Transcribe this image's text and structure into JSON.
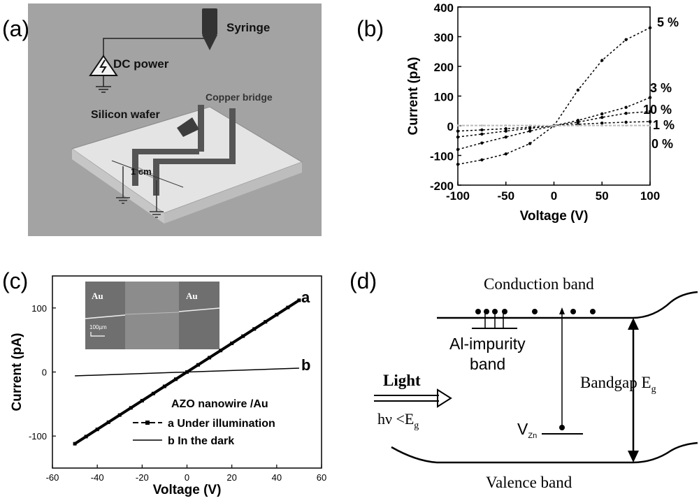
{
  "panels": {
    "a": {
      "label": "(a)",
      "syringe": "Syringe",
      "dc_power": "DC power",
      "copper_bridge": "Copper bridge",
      "silicon_wafer": "Silicon wafer",
      "gap": "1 cm"
    },
    "b": {
      "label": "(b)"
    },
    "c": {
      "label": "(c)",
      "inset": {
        "electrode_left": "Au",
        "electrode_right": "Au",
        "scale": "100µm"
      },
      "curve_a_label": "a",
      "curve_b_label": "b",
      "legend_title": "AZO nanowire /Au",
      "legend_a": "a Under illumination",
      "legend_b": "b In the dark"
    },
    "d": {
      "label": "(d)",
      "conduction_band": "Conduction band",
      "valence_band": "Valence band",
      "impurity_line1": "Al-impurity",
      "impurity_line2": "band",
      "bandgap": "Bandgap E",
      "bandgap_sub": "g",
      "light": "Light",
      "photon": "hν <E",
      "photon_sub": "g",
      "vzn": "V",
      "vzn_sub": "Zn"
    }
  },
  "chart_data": [
    {
      "panel": "b",
      "type": "line",
      "xlabel": "Voltage (V)",
      "ylabel": "Current (pA)",
      "xlim": [
        -100,
        100
      ],
      "ylim": [
        -200,
        400
      ],
      "xticks": [
        -100,
        -50,
        0,
        50,
        100
      ],
      "yticks": [
        -200,
        -100,
        0,
        100,
        200,
        300,
        400
      ],
      "x": [
        -100,
        -75,
        -50,
        -25,
        0,
        25,
        50,
        75,
        100
      ],
      "series": [
        {
          "name": "5 %",
          "values": [
            -130,
            -115,
            -95,
            -60,
            0,
            120,
            220,
            290,
            330
          ]
        },
        {
          "name": "3 %",
          "values": [
            -80,
            -58,
            -38,
            -18,
            0,
            18,
            40,
            62,
            95
          ]
        },
        {
          "name": "10 %",
          "values": [
            -38,
            -28,
            -18,
            -9,
            0,
            12,
            28,
            42,
            48
          ]
        },
        {
          "name": "1 %",
          "values": [
            -18,
            -14,
            -10,
            -5,
            0,
            5,
            9,
            12,
            14
          ]
        },
        {
          "name": "0 %",
          "values": [
            1,
            1,
            1,
            1,
            0,
            1,
            1,
            1,
            1
          ]
        }
      ]
    },
    {
      "panel": "c",
      "type": "line",
      "xlabel": "Voltage (V)",
      "ylabel": "Current (pA)",
      "xlim": [
        -60,
        60
      ],
      "ylim": [
        -150,
        150
      ],
      "xticks": [
        -60,
        -40,
        -20,
        0,
        20,
        40,
        60
      ],
      "yticks": [
        -100,
        0,
        100
      ],
      "x": [
        -50,
        50
      ],
      "series": [
        {
          "name": "a",
          "values": [
            -112,
            112
          ]
        },
        {
          "name": "b",
          "values": [
            -6,
            6
          ]
        }
      ]
    }
  ]
}
